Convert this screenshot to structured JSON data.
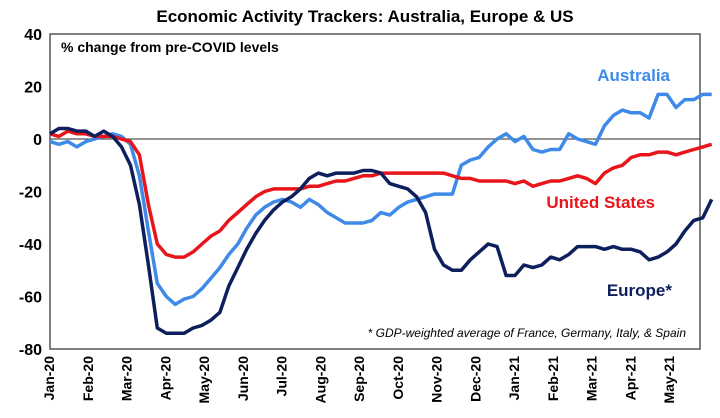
{
  "chart_data": {
    "type": "line",
    "title": "Economic Activity Trackers: Australia, Europe & US",
    "subtitle": "% change from pre-COVID levels",
    "footnote": "* GDP-weighted average of France, Germany, Italy, & Spain",
    "xlabel": "",
    "ylabel": "",
    "ylim": [
      -80,
      40
    ],
    "yticks": [
      40,
      20,
      0,
      -20,
      -40,
      -60,
      -80
    ],
    "xticks": [
      "Jan-20",
      "Feb-20",
      "Mar-20",
      "Apr-20",
      "May-20",
      "Jun-20",
      "Jul-20",
      "Aug-20",
      "Sep-20",
      "Oct-20",
      "Nov-20",
      "Dec-20",
      "Jan-21",
      "Feb-21",
      "Mar-21",
      "Apr-21",
      "May-21"
    ],
    "x_unit": "weeks since start of Jan-20",
    "grid": false,
    "zero_line": true,
    "series": [
      {
        "name": "Australia",
        "color": "#3f8ae8",
        "label_position": "upper-right",
        "values": [
          -1,
          -2,
          -1,
          -3,
          -1,
          0,
          1,
          2,
          1,
          -2,
          -14,
          -35,
          -55,
          -60,
          -63,
          -61,
          -60,
          -57,
          -53,
          -49,
          -44,
          -40,
          -34,
          -29,
          -26,
          -24,
          -23,
          -24,
          -26,
          -23,
          -25,
          -28,
          -30,
          -32,
          -32,
          -32,
          -31,
          -28,
          -29,
          -26,
          -24,
          -23,
          -22,
          -21,
          -21,
          -21,
          -10,
          -8,
          -7,
          -3,
          0,
          2,
          -1,
          1,
          -4,
          -5,
          -4,
          -4,
          2,
          0,
          -1,
          -2,
          5,
          9,
          11,
          10,
          10,
          8,
          17,
          17,
          12,
          15,
          15,
          17,
          17
        ]
      },
      {
        "name": "United States",
        "color": "#e8151b",
        "label_position": "right-middle",
        "values": [
          2,
          1,
          3,
          2,
          2,
          1,
          1,
          1,
          0,
          -1,
          -6,
          -25,
          -40,
          -44,
          -45,
          -45,
          -43,
          -40,
          -37,
          -35,
          -31,
          -28,
          -25,
          -22,
          -20,
          -19,
          -19,
          -19,
          -19,
          -18,
          -18,
          -17,
          -16,
          -16,
          -15,
          -14,
          -14,
          -13,
          -13,
          -13,
          -13,
          -13,
          -13,
          -13,
          -13,
          -14,
          -15,
          -15,
          -16,
          -16,
          -16,
          -16,
          -17,
          -16,
          -18,
          -17,
          -16,
          -16,
          -15,
          -14,
          -15,
          -17,
          -13,
          -11,
          -10,
          -7,
          -6,
          -6,
          -5,
          -5,
          -6,
          -5,
          -4,
          -3,
          -2
        ]
      },
      {
        "name": "Europe*",
        "color": "#0d1f5c",
        "label_position": "lower-right",
        "values": [
          2,
          4,
          4,
          3,
          3,
          1,
          3,
          1,
          -3,
          -10,
          -25,
          -48,
          -72,
          -74,
          -74,
          -74,
          -72,
          -71,
          -69,
          -66,
          -56,
          -49,
          -42,
          -36,
          -31,
          -27,
          -24,
          -22,
          -19,
          -15,
          -13,
          -14,
          -13,
          -13,
          -13,
          -12,
          -12,
          -13,
          -17,
          -18,
          -19,
          -22,
          -28,
          -42,
          -48,
          -50,
          -50,
          -46,
          -43,
          -40,
          -41,
          -52,
          -52,
          -48,
          -49,
          -48,
          -45,
          -46,
          -44,
          -41,
          -41,
          -41,
          -42,
          -41,
          -42,
          -42,
          -43,
          -46,
          -45,
          -43,
          -40,
          -35,
          -31,
          -30,
          -23
        ]
      }
    ]
  }
}
